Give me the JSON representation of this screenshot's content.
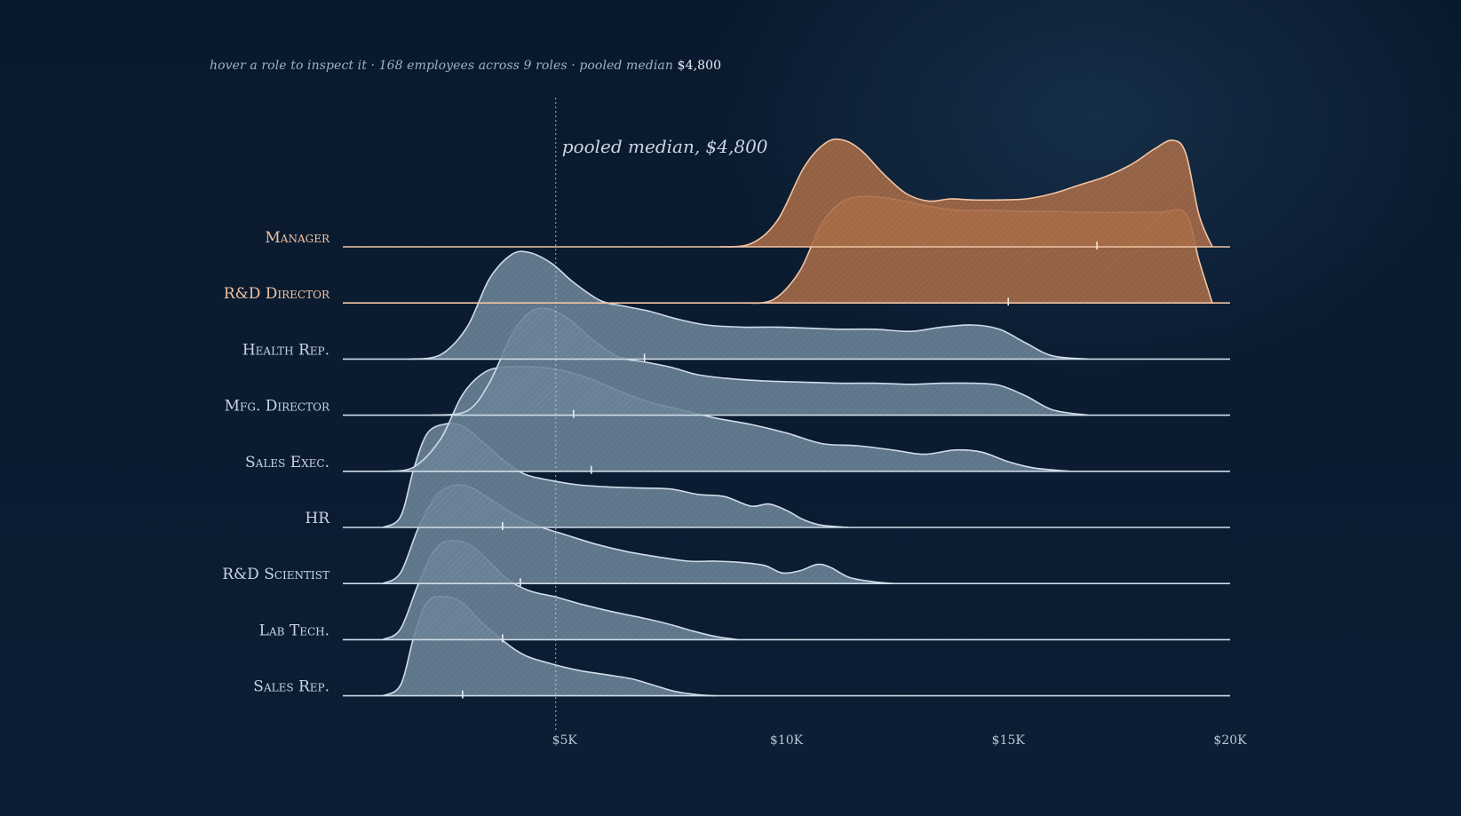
{
  "subtitle": {
    "prefix": "hover a role to inspect it · 168 employees across 9 roles · pooled median",
    "median_value": "$4,800"
  },
  "colors": {
    "highlight_fill": "#a66a45",
    "highlight_stroke": "#f2c4a3",
    "base_fill": "#6a8296",
    "base_stroke": "#cfdce8",
    "label_base": "#c8d5e2",
    "label_highlight": "#efc3a1"
  },
  "chart_data": {
    "type": "ridgeline",
    "xlim": [
      0,
      20000
    ],
    "x_ticks": [
      {
        "value": 5000,
        "label": "$5K"
      },
      {
        "value": 10000,
        "label": "$10K"
      },
      {
        "value": 15000,
        "label": "$15K"
      },
      {
        "value": 20000,
        "label": "$20K"
      }
    ],
    "median_line": {
      "value": 4800,
      "label": "pooled median, $4,800"
    },
    "series": [
      {
        "name": "Manager",
        "highlighted": true,
        "median": 17000,
        "density": [
          [
            8500,
            0
          ],
          [
            9200,
            0.03
          ],
          [
            9800,
            0.25
          ],
          [
            10400,
            0.75
          ],
          [
            10900,
            0.98
          ],
          [
            11300,
            1.0
          ],
          [
            11700,
            0.9
          ],
          [
            12200,
            0.68
          ],
          [
            12700,
            0.5
          ],
          [
            13200,
            0.43
          ],
          [
            13700,
            0.45
          ],
          [
            14200,
            0.44
          ],
          [
            14800,
            0.44
          ],
          [
            15400,
            0.45
          ],
          [
            16000,
            0.5
          ],
          [
            16600,
            0.58
          ],
          [
            17200,
            0.66
          ],
          [
            17800,
            0.78
          ],
          [
            18300,
            0.92
          ],
          [
            18700,
            1.0
          ],
          [
            19000,
            0.88
          ],
          [
            19300,
            0.3
          ],
          [
            19600,
            0
          ]
        ]
      },
      {
        "name": "R&D Director",
        "highlighted": true,
        "median": 15000,
        "density": [
          [
            9000,
            0
          ],
          [
            9700,
            0.03
          ],
          [
            10300,
            0.3
          ],
          [
            10800,
            0.75
          ],
          [
            11300,
            0.96
          ],
          [
            11900,
            1.0
          ],
          [
            12600,
            0.96
          ],
          [
            13300,
            0.9
          ],
          [
            13900,
            0.87
          ],
          [
            14600,
            0.87
          ],
          [
            15300,
            0.86
          ],
          [
            16000,
            0.86
          ],
          [
            16800,
            0.85
          ],
          [
            17600,
            0.85
          ],
          [
            18400,
            0.85
          ],
          [
            19000,
            0.84
          ],
          [
            19300,
            0.4
          ],
          [
            19600,
            0
          ]
        ]
      },
      {
        "name": "Health Rep.",
        "highlighted": false,
        "median": 6800,
        "density": [
          [
            1500,
            0
          ],
          [
            2200,
            0.04
          ],
          [
            2800,
            0.3
          ],
          [
            3300,
            0.75
          ],
          [
            3800,
            0.98
          ],
          [
            4200,
            1.0
          ],
          [
            4700,
            0.9
          ],
          [
            5200,
            0.72
          ],
          [
            5800,
            0.55
          ],
          [
            6300,
            0.5
          ],
          [
            6900,
            0.45
          ],
          [
            7500,
            0.38
          ],
          [
            8200,
            0.32
          ],
          [
            9000,
            0.3
          ],
          [
            9800,
            0.3
          ],
          [
            10500,
            0.29
          ],
          [
            11200,
            0.28
          ],
          [
            12000,
            0.28
          ],
          [
            12800,
            0.26
          ],
          [
            13500,
            0.3
          ],
          [
            14200,
            0.32
          ],
          [
            14800,
            0.28
          ],
          [
            15400,
            0.15
          ],
          [
            16000,
            0.03
          ],
          [
            16800,
            0
          ]
        ]
      },
      {
        "name": "Mfg. Director",
        "highlighted": false,
        "median": 5200,
        "density": [
          [
            2000,
            0
          ],
          [
            2800,
            0.04
          ],
          [
            3300,
            0.3
          ],
          [
            3800,
            0.75
          ],
          [
            4200,
            0.96
          ],
          [
            4600,
            1.0
          ],
          [
            5100,
            0.9
          ],
          [
            5600,
            0.72
          ],
          [
            6200,
            0.55
          ],
          [
            6800,
            0.5
          ],
          [
            7400,
            0.45
          ],
          [
            8000,
            0.38
          ],
          [
            8800,
            0.34
          ],
          [
            9600,
            0.32
          ],
          [
            10400,
            0.31
          ],
          [
            11200,
            0.3
          ],
          [
            12000,
            0.3
          ],
          [
            12800,
            0.29
          ],
          [
            13500,
            0.3
          ],
          [
            14200,
            0.3
          ],
          [
            14800,
            0.28
          ],
          [
            15400,
            0.18
          ],
          [
            16000,
            0.05
          ],
          [
            16800,
            0
          ]
        ]
      },
      {
        "name": "Sales Exec.",
        "highlighted": false,
        "median": 5600,
        "density": [
          [
            1000,
            0
          ],
          [
            1600,
            0.04
          ],
          [
            2200,
            0.3
          ],
          [
            2700,
            0.72
          ],
          [
            3200,
            0.93
          ],
          [
            3700,
            0.98
          ],
          [
            4300,
            0.98
          ],
          [
            4900,
            0.95
          ],
          [
            5500,
            0.88
          ],
          [
            6200,
            0.76
          ],
          [
            6900,
            0.65
          ],
          [
            7600,
            0.58
          ],
          [
            8400,
            0.5
          ],
          [
            9200,
            0.44
          ],
          [
            10000,
            0.36
          ],
          [
            10800,
            0.26
          ],
          [
            11600,
            0.24
          ],
          [
            12400,
            0.2
          ],
          [
            13100,
            0.16
          ],
          [
            13800,
            0.2
          ],
          [
            14400,
            0.18
          ],
          [
            15000,
            0.09
          ],
          [
            15600,
            0.03
          ],
          [
            16400,
            0
          ]
        ]
      },
      {
        "name": "HR",
        "highlighted": false,
        "median": 3600,
        "density": [
          [
            900,
            0
          ],
          [
            1300,
            0.1
          ],
          [
            1600,
            0.55
          ],
          [
            1900,
            0.88
          ],
          [
            2300,
            0.97
          ],
          [
            2700,
            0.95
          ],
          [
            3100,
            0.82
          ],
          [
            3600,
            0.64
          ],
          [
            4100,
            0.5
          ],
          [
            4700,
            0.44
          ],
          [
            5300,
            0.4
          ],
          [
            6000,
            0.38
          ],
          [
            6700,
            0.37
          ],
          [
            7400,
            0.36
          ],
          [
            8000,
            0.31
          ],
          [
            8600,
            0.29
          ],
          [
            9200,
            0.2
          ],
          [
            9600,
            0.22
          ],
          [
            10000,
            0.16
          ],
          [
            10400,
            0.07
          ],
          [
            10800,
            0.02
          ],
          [
            11400,
            0
          ]
        ]
      },
      {
        "name": "R&D Scientist",
        "highlighted": false,
        "median": 4000,
        "density": [
          [
            900,
            0
          ],
          [
            1300,
            0.1
          ],
          [
            1700,
            0.52
          ],
          [
            2100,
            0.82
          ],
          [
            2500,
            0.92
          ],
          [
            2900,
            0.9
          ],
          [
            3400,
            0.77
          ],
          [
            3900,
            0.64
          ],
          [
            4400,
            0.54
          ],
          [
            5000,
            0.46
          ],
          [
            5700,
            0.37
          ],
          [
            6400,
            0.3
          ],
          [
            7100,
            0.25
          ],
          [
            7800,
            0.21
          ],
          [
            8400,
            0.21
          ],
          [
            8900,
            0.2
          ],
          [
            9500,
            0.17
          ],
          [
            9900,
            0.1
          ],
          [
            10300,
            0.12
          ],
          [
            10700,
            0.18
          ],
          [
            11000,
            0.15
          ],
          [
            11400,
            0.06
          ],
          [
            11900,
            0.02
          ],
          [
            12400,
            0
          ]
        ]
      },
      {
        "name": "Lab Tech.",
        "highlighted": false,
        "median": 3600,
        "density": [
          [
            900,
            0
          ],
          [
            1300,
            0.1
          ],
          [
            1700,
            0.52
          ],
          [
            2100,
            0.86
          ],
          [
            2500,
            0.93
          ],
          [
            2900,
            0.88
          ],
          [
            3300,
            0.73
          ],
          [
            3700,
            0.57
          ],
          [
            4200,
            0.46
          ],
          [
            4800,
            0.4
          ],
          [
            5400,
            0.33
          ],
          [
            6100,
            0.26
          ],
          [
            6800,
            0.2
          ],
          [
            7400,
            0.14
          ],
          [
            7900,
            0.08
          ],
          [
            8400,
            0.03
          ],
          [
            8900,
            0
          ]
        ]
      },
      {
        "name": "Sales Rep.",
        "highlighted": false,
        "median": 2700,
        "density": [
          [
            900,
            0
          ],
          [
            1300,
            0.1
          ],
          [
            1600,
            0.55
          ],
          [
            1900,
            0.88
          ],
          [
            2300,
            0.93
          ],
          [
            2700,
            0.87
          ],
          [
            3100,
            0.7
          ],
          [
            3600,
            0.52
          ],
          [
            4100,
            0.38
          ],
          [
            4700,
            0.3
          ],
          [
            5300,
            0.24
          ],
          [
            5900,
            0.2
          ],
          [
            6500,
            0.16
          ],
          [
            7000,
            0.1
          ],
          [
            7500,
            0.04
          ],
          [
            8000,
            0.01
          ],
          [
            8400,
            0
          ]
        ]
      }
    ]
  }
}
